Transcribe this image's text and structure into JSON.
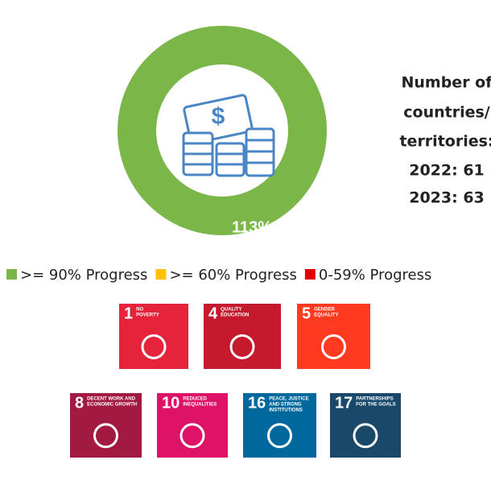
{
  "indicator": {
    "value_label": "113%",
    "color": "#7ab648",
    "note": [
      "Number of",
      "countries/",
      "territories:",
      "2022: 61",
      "2023: 63"
    ]
  },
  "legend": [
    {
      "label": ">= 90% Progress",
      "color": "#7ab648"
    },
    {
      "label": ">= 60% Progress",
      "color": "#ffc000"
    },
    {
      "label": "0-59% Progress",
      "color": "#e00000"
    }
  ],
  "goals": [
    {
      "number": "1",
      "title": [
        "NO",
        "POVERTY"
      ],
      "color": "#e5243b"
    },
    {
      "number": "4",
      "title": [
        "QUALITY",
        "EDUCATION"
      ],
      "color": "#c5192d"
    },
    {
      "number": "5",
      "title": [
        "GENDER",
        "EQUALITY"
      ],
      "color": "#ff3a21"
    },
    {
      "number": "8",
      "title": [
        "DECENT WORK AND",
        "ECONOMIC GROWTH"
      ],
      "color": "#a21942"
    },
    {
      "number": "10",
      "title": [
        "REDUCED",
        "INEQUALITIES"
      ],
      "color": "#dd1367"
    },
    {
      "number": "16",
      "title": [
        "PEACE, JUSTICE",
        "AND STRONG",
        "INSTITUTIONS"
      ],
      "color": "#00689d"
    },
    {
      "number": "17",
      "title": [
        "PARTNERSHIPS",
        "FOR THE GOALS"
      ],
      "color": "#19486a"
    }
  ]
}
